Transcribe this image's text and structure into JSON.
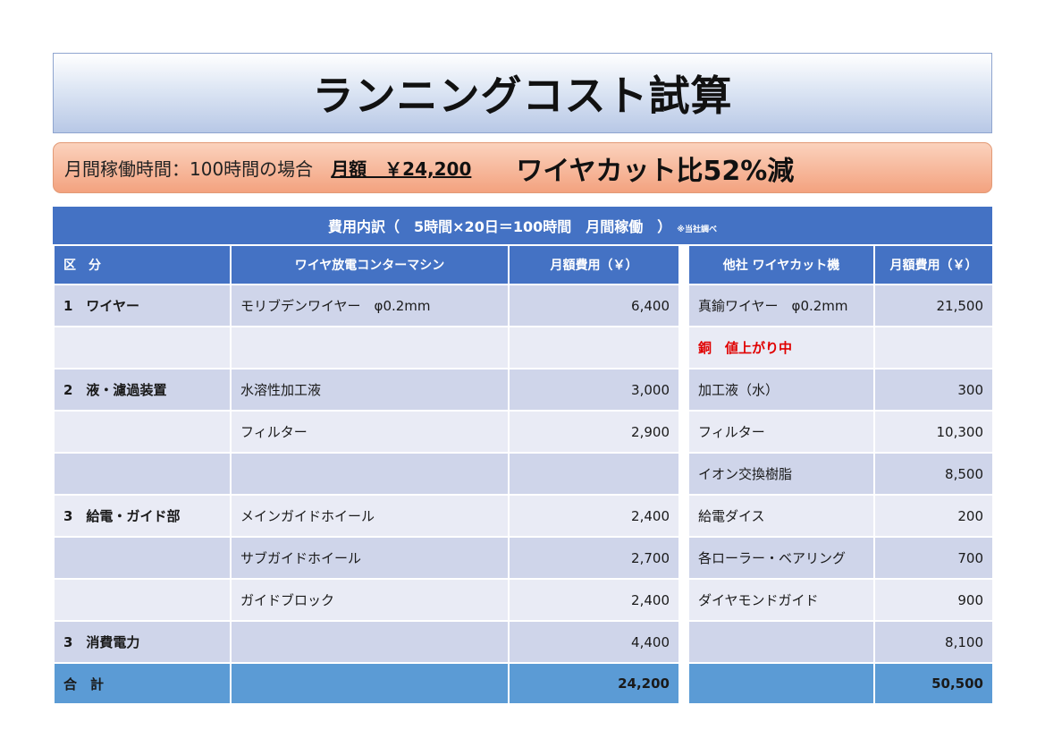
{
  "title": "ランニングコスト試算",
  "summary": {
    "condition": "月間稼働時間：100時間の場合",
    "amount": "月額　￥24,200",
    "reduction": "ワイヤカット比52%減"
  },
  "table": {
    "title": "費用内訳（　5時間×20日＝100時間　月間稼働　）",
    "note": "※当社調べ",
    "headers": [
      "区　分",
      "ワイヤ放電コンターマシン",
      "月額費用（￥）",
      "他社 ワイヤカット機",
      "月額費用（￥）"
    ],
    "rows": [
      {
        "cat": "1　ワイヤー",
        "item": "モリブデンワイヤー　φ0.2mm",
        "cost": "6,400",
        "other": "真鍮ワイヤー　φ0.2mm",
        "other_cost": "21,500"
      },
      {
        "cat": "",
        "item": "",
        "cost": "",
        "other": "銅　値上がり中",
        "other_cost": ""
      },
      {
        "cat": "2　液・濾過装置",
        "item": "水溶性加工液",
        "cost": "3,000",
        "other": "加工液（水）",
        "other_cost": "300"
      },
      {
        "cat": "",
        "item": "フィルター",
        "cost": "2,900",
        "other": "フィルター",
        "other_cost": "10,300"
      },
      {
        "cat": "",
        "item": "",
        "cost": "",
        "other": "イオン交換樹脂",
        "other_cost": "8,500"
      },
      {
        "cat": "3　給電・ガイド部",
        "item": "メインガイドホイール",
        "cost": "2,400",
        "other": "給電ダイス",
        "other_cost": "200"
      },
      {
        "cat": "",
        "item": "サブガイドホイール",
        "cost": "2,700",
        "other": "各ローラー・ベアリング",
        "other_cost": "700"
      },
      {
        "cat": "",
        "item": "ガイドブロック",
        "cost": "2,400",
        "other": "ダイヤモンドガイド",
        "other_cost": "900"
      },
      {
        "cat": "3　消費電力",
        "item": "",
        "cost": "4,400",
        "other": "",
        "other_cost": "8,100"
      }
    ],
    "total": {
      "label": "合　計",
      "cost": "24,200",
      "other_cost": "50,500"
    }
  },
  "colors": {
    "header_blue": "#4472c4",
    "total_blue": "#5b9bd5",
    "row_dark": "#cfd5ea",
    "row_light": "#e9ebf5",
    "summary_orange": "#f3a27f",
    "alert_red": "#e00000"
  }
}
